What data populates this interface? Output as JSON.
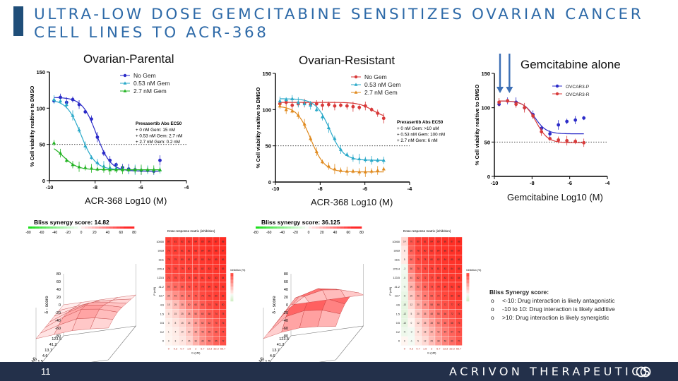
{
  "slide": {
    "title": "ULTRA-LOW DOSE GEMCITABINE SENSITIZES OVARIAN CANCER CELL LINES TO ACR-368",
    "page_number": "11",
    "brand": "ACRIVON THERAPEUTICS"
  },
  "colors": {
    "title": "#2e6aa8",
    "footer": "#23304a",
    "gem0": "#2b2bc8",
    "gem053": "#2aa9c9",
    "gem27": "#22b322",
    "res0": "#d83a3a",
    "res27": "#e08a1e",
    "ovcar_p": "#2b2bc8",
    "ovcar_r": "#d83a3a",
    "arrow": "#3d6fb5"
  },
  "panels": {
    "parental": {
      "title": "Ovarian-Parental",
      "xcaption": "ACR-368 Log10 (M)",
      "box_title": "Prexasertib Abs EC50",
      "box_lines": [
        "+ 0 nM Gem: 15 nM",
        "+ 0.53 nM Gem: 2.7 nM",
        "+ 2.7 nM Gem: 0.2 nM"
      ]
    },
    "resistant": {
      "title": "Ovarian-Resistant",
      "xcaption": "ACR-368 Log10 (M)",
      "box_title": "Prexasertib Abs EC50",
      "box_lines": [
        "+ 0 nM Gem: >10 uM",
        "+ 0.53 nM Gem: 100 nM",
        "+ 2.7 nM Gem: 6 nM"
      ]
    },
    "gem": {
      "title": "Gemcitabine alone",
      "xcaption": "Gemcitabine Log10 (M)"
    },
    "bliss1": {
      "title": "Bliss synergy score: 14.82"
    },
    "bliss2": {
      "title": "Bliss synergy score: 36.125"
    },
    "matrix_title": "Dose-response matrix (inhibition)",
    "colorbar_ticks": [
      "-80",
      "-60",
      "-40",
      "-20",
      "0",
      "20",
      "40",
      "60",
      "80"
    ],
    "surface_zlabel": "δ - score",
    "surface_xlabel": "G (nM)",
    "surface_ylabel": "P (nM)",
    "surface_g_ticks": [
      "0",
      "0.53",
      "2.67",
      "13.3",
      "66.7"
    ],
    "surface_p_ticks": [
      "0",
      "0.51",
      "1.5",
      "4.6",
      "13.7",
      "41.2",
      "123.5"
    ],
    "surface_z_ticks": [
      "80",
      "60",
      "40",
      "20",
      "0",
      "-20",
      "-40",
      "-60",
      "-80"
    ]
  },
  "bliss_legend": {
    "title": "Bliss Synergy score:",
    "items": [
      "<-10: Drug interaction is likely antagonistic",
      "-10 to 10: Drug interaction is likely additive",
      ">10: Drug interaction is likely synergistic"
    ]
  },
  "chart_data": [
    {
      "type": "scatter",
      "title": "Ovarian-Parental",
      "xlabel": "ACR-368 Log10 (M)",
      "ylabel": "% Cell viability realtive to DMSO",
      "xlim": [
        -10,
        -4
      ],
      "ylim": [
        0,
        150
      ],
      "x_ticks": [
        "-10",
        "-8",
        "-6",
        "-4"
      ],
      "y_ticks": [
        "0",
        "50",
        "100",
        "150"
      ],
      "x": [
        -9.8,
        -9.52,
        -9.25,
        -8.98,
        -8.7,
        -8.43,
        -8.16,
        -7.9,
        -7.62,
        -7.35,
        -7.08,
        -6.8,
        -6.53,
        -6.25,
        -5.98,
        -5.7,
        -5.43,
        -5.16
      ],
      "legend": [
        "No Gem",
        "0.53 nM Gem",
        "2.7 nM Gem"
      ],
      "series": [
        {
          "name": "No Gem",
          "values": [
            110,
            115,
            108,
            112,
            105,
            95,
            85,
            60,
            38,
            28,
            22,
            18,
            16,
            15,
            14,
            14,
            13,
            28
          ]
        },
        {
          "name": "0.53 nM Gem",
          "values": [
            112,
            110,
            105,
            90,
            70,
            48,
            32,
            25,
            20,
            18,
            17,
            16,
            15,
            15,
            15,
            15,
            15,
            15
          ]
        },
        {
          "name": "2.7 nM Gem",
          "values": [
            52,
            38,
            28,
            22,
            19,
            18,
            17,
            16,
            16,
            15,
            15,
            15,
            15,
            15,
            15,
            15,
            15,
            15
          ]
        }
      ]
    },
    {
      "type": "scatter",
      "title": "Ovarian-Resistant",
      "xlabel": "ACR-368 Log10 (M)",
      "ylabel": "% Cell viability realtive to DMSO",
      "xlim": [
        -10,
        -4
      ],
      "ylim": [
        0,
        150
      ],
      "x_ticks": [
        "-10",
        "-8",
        "-6",
        "-4"
      ],
      "y_ticks": [
        "0",
        "50",
        "100",
        "150"
      ],
      "x": [
        -9.8,
        -9.52,
        -9.25,
        -8.98,
        -8.7,
        -8.43,
        -8.16,
        -7.9,
        -7.62,
        -7.35,
        -7.08,
        -6.8,
        -6.53,
        -6.25,
        -5.98,
        -5.7,
        -5.43,
        -5.16
      ],
      "legend": [
        "No Gem",
        "0.53 nM Gem",
        "2.7 nM Gem"
      ],
      "series": [
        {
          "name": "No Gem",
          "values": [
            108,
            110,
            106,
            108,
            109,
            107,
            108,
            106,
            107,
            105,
            106,
            105,
            104,
            103,
            105,
            100,
            95,
            88
          ]
        },
        {
          "name": "0.53 nM Gem",
          "values": [
            112,
            114,
            115,
            110,
            108,
            106,
            100,
            90,
            75,
            60,
            45,
            38,
            33,
            32,
            31,
            30,
            30,
            30
          ]
        },
        {
          "name": "2.7 nM Gem",
          "values": [
            105,
            100,
            98,
            92,
            80,
            60,
            42,
            28,
            22,
            18,
            16,
            15,
            15,
            14,
            14,
            15,
            16,
            18
          ]
        }
      ]
    },
    {
      "type": "scatter",
      "title": "Gemcitabine alone",
      "xlabel": "Gemcitabine Log10 (M)",
      "ylabel": "% Cell viability realtive to DMSO",
      "xlim": [
        -10,
        -4
      ],
      "ylim": [
        0,
        150
      ],
      "x_ticks": [
        "-10",
        "-8",
        "-6",
        "-4"
      ],
      "y_ticks": [
        "0",
        "50",
        "100",
        "150"
      ],
      "x": [
        -9.75,
        -9.3,
        -8.85,
        -8.4,
        -7.95,
        -7.5,
        -7.05,
        -6.6,
        -6.15,
        -5.7,
        -5.25
      ],
      "legend": [
        "OVCAR3-P",
        "OVCAR3-R"
      ],
      "arrows_at_x": [
        -9.7,
        -9.2
      ],
      "series": [
        {
          "name": "OVCAR3-P",
          "values": [
            105,
            110,
            108,
            100,
            90,
            70,
            62,
            75,
            80,
            82,
            85
          ]
        },
        {
          "name": "OVCAR3-R",
          "values": [
            108,
            110,
            105,
            100,
            88,
            65,
            55,
            53,
            52,
            51,
            49
          ]
        }
      ]
    },
    {
      "type": "heatmap",
      "title": "Dose-response matrix (inhibition)",
      "label": "Parental",
      "ylabel": "P (nM)",
      "xlabel": "G (nM)",
      "colorbar_label": "Inhibition (%)",
      "col_labels": [
        "0",
        "0.3",
        "0.7",
        "1.5",
        "3",
        "6.7",
        "13.3",
        "33.3",
        "66.7"
      ],
      "row_labels": [
        "10000",
        "3333",
        "1111",
        "370.4",
        "123.5",
        "41.2",
        "13.7",
        "4.6",
        "1.5",
        "0.5",
        "0.2",
        "0"
      ],
      "values": [
        [
          80,
          81,
          82,
          83,
          84,
          85,
          86,
          87,
          88
        ],
        [
          79,
          80,
          81,
          82,
          83,
          84,
          85,
          86,
          87
        ],
        [
          78,
          79,
          80,
          81,
          82,
          83,
          84,
          85,
          86
        ],
        [
          76,
          78,
          79,
          80,
          81,
          82,
          83,
          84,
          85
        ],
        [
          72,
          75,
          77,
          78,
          80,
          81,
          82,
          83,
          84
        ],
        [
          55,
          62,
          68,
          73,
          77,
          79,
          80,
          82,
          83
        ],
        [
          35,
          45,
          55,
          62,
          70,
          75,
          78,
          80,
          82
        ],
        [
          15,
          25,
          38,
          50,
          60,
          68,
          74,
          78,
          80
        ],
        [
          8,
          15,
          25,
          38,
          50,
          60,
          68,
          74,
          78
        ],
        [
          3,
          8,
          15,
          25,
          40,
          52,
          62,
          70,
          76
        ],
        [
          1,
          4,
          10,
          20,
          35,
          48,
          58,
          66,
          74
        ],
        [
          0,
          3,
          7,
          15,
          30,
          45,
          55,
          65,
          72
        ]
      ]
    },
    {
      "type": "heatmap",
      "title": "Dose-response matrix (inhibition)",
      "label": "Resistant",
      "ylabel": "P (nM)",
      "xlabel": "G (nM)",
      "colorbar_label": "Inhibition (%)",
      "col_labels": [
        "0",
        "0.3",
        "0.7",
        "1.5",
        "3",
        "6.7",
        "13.3",
        "33.3",
        "66.7"
      ],
      "row_labels": [
        "10000",
        "3333",
        "1111",
        "370.4",
        "123.5",
        "41.2",
        "13.7",
        "4.6",
        "1.5",
        "0.5",
        "0.2",
        "0"
      ],
      "values": [
        [
          14,
          70,
          80,
          82,
          84,
          85,
          86,
          87,
          88
        ],
        [
          6,
          65,
          78,
          80,
          82,
          84,
          85,
          86,
          87
        ],
        [
          5,
          60,
          75,
          78,
          80,
          82,
          84,
          85,
          86
        ],
        [
          -3,
          50,
          70,
          76,
          79,
          81,
          83,
          84,
          85
        ],
        [
          -5,
          40,
          62,
          72,
          77,
          80,
          82,
          83,
          84
        ],
        [
          -5,
          30,
          52,
          65,
          73,
          78,
          80,
          82,
          83
        ],
        [
          -8,
          20,
          40,
          55,
          65,
          72,
          77,
          80,
          82
        ],
        [
          -10,
          12,
          30,
          45,
          58,
          66,
          72,
          77,
          80
        ],
        [
          -12,
          5,
          20,
          35,
          48,
          58,
          66,
          72,
          78
        ],
        [
          -10,
          0,
          12,
          25,
          38,
          50,
          60,
          68,
          75
        ],
        [
          -5,
          -2,
          8,
          18,
          30,
          42,
          54,
          64,
          72
        ],
        [
          0,
          -1,
          5,
          12,
          25,
          38,
          50,
          60,
          70
        ]
      ]
    },
    {
      "type": "area",
      "title": "Bliss synergy score: 14.82",
      "label": "Parental surface",
      "xlabel": "G (nM)",
      "ylabel": "P (nM)",
      "zlabel": "δ - score",
      "zlim": [
        -80,
        80
      ],
      "g": [
        "0",
        "0.53",
        "2.67",
        "13.3",
        "66.7"
      ],
      "p": [
        "0",
        "0.51",
        "1.5",
        "4.6",
        "13.7",
        "41.2",
        "123.5"
      ],
      "values": [
        [
          0,
          0,
          0,
          0,
          0
        ],
        [
          0,
          5,
          10,
          8,
          4
        ],
        [
          0,
          12,
          22,
          16,
          8
        ],
        [
          0,
          18,
          30,
          24,
          12
        ],
        [
          0,
          20,
          34,
          28,
          14
        ],
        [
          0,
          14,
          24,
          20,
          10
        ],
        [
          0,
          4,
          8,
          6,
          2
        ]
      ]
    },
    {
      "type": "area",
      "title": "Bliss synergy score: 36.125",
      "label": "Resistant surface",
      "xlabel": "G (nM)",
      "ylabel": "P (nM)",
      "zlabel": "δ - score",
      "zlim": [
        -80,
        80
      ],
      "g": [
        "0",
        "0.53",
        "2.67",
        "13.3",
        "66.7"
      ],
      "p": [
        "0",
        "0.51",
        "1.5",
        "4.6",
        "13.7",
        "41.2",
        "123.5"
      ],
      "values": [
        [
          0,
          0,
          0,
          0,
          0
        ],
        [
          0,
          30,
          40,
          34,
          20
        ],
        [
          0,
          45,
          58,
          50,
          30
        ],
        [
          0,
          55,
          66,
          58,
          38
        ],
        [
          0,
          52,
          62,
          55,
          35
        ],
        [
          0,
          36,
          45,
          40,
          24
        ],
        [
          0,
          10,
          15,
          12,
          6
        ]
      ]
    }
  ]
}
